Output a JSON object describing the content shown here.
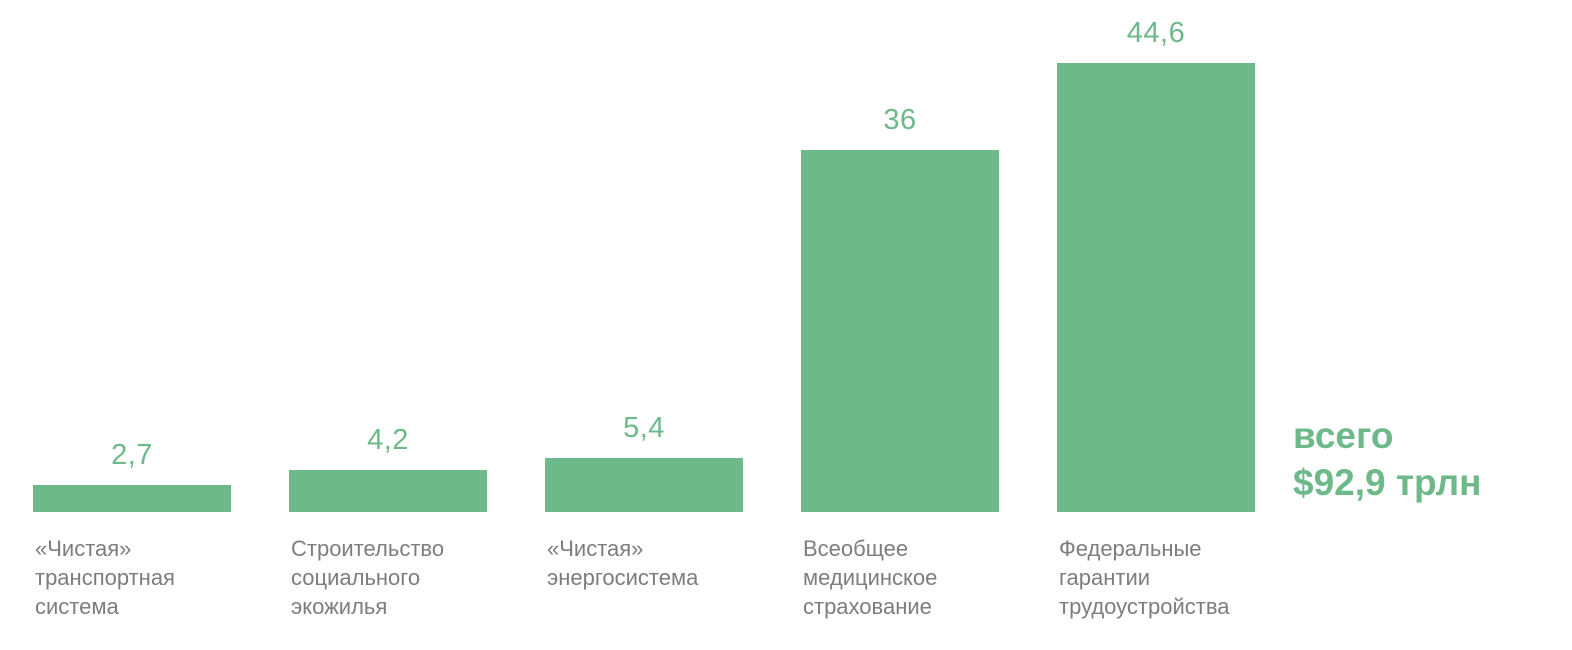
{
  "chart_data": {
    "type": "bar",
    "title": "",
    "xlabel": "",
    "ylabel": "",
    "categories": [
      "«Чистая» транспортная система",
      "Строительство социального экожилья",
      "«Чистая» энергосистема",
      "Всеобщее медицинское страхование",
      "Федеральные гарантии трудоустройства"
    ],
    "category_display": [
      "«Чистая»\nтранспортная\nсистема",
      "Строительство\nсоциального\nэкожилья",
      "«Чистая»\nэнергосистема",
      "Всеобщее\nмедицинское\nстрахование",
      "Федеральные\nгарантии\nтрудоустройства"
    ],
    "values": [
      2.7,
      4.2,
      5.4,
      36,
      44.6
    ],
    "value_labels": [
      "2,7",
      "4,2",
      "5,4",
      "36",
      "44,6"
    ],
    "ylim": [
      0,
      46
    ],
    "grid": false,
    "legend": "none",
    "annotation": {
      "line1": "всего",
      "line2": "$92,9 трлн"
    },
    "colors": {
      "bar": "#6db98a",
      "value_label": "#6db98a",
      "category_label": "#7d7d7d",
      "annotation": "#6db98a"
    }
  }
}
